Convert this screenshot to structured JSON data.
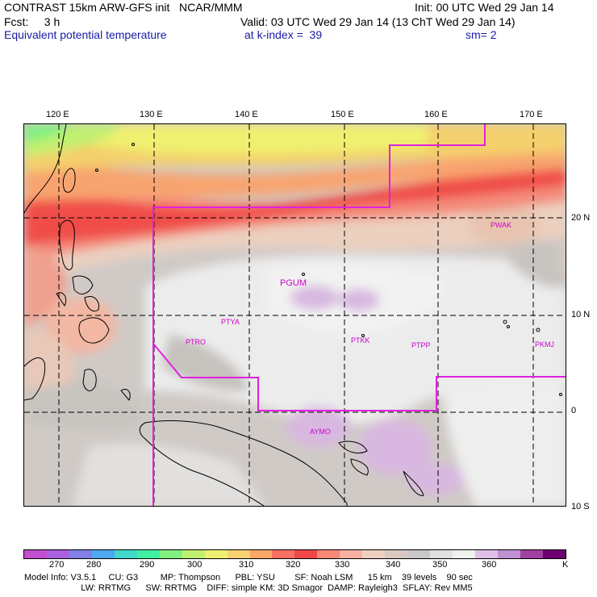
{
  "header": {
    "line1_left": "CONTRAST 15km ARW-GFS init   NCAR/MMM",
    "line1_right": "Init: 00 UTC Wed 29 Jan 14",
    "line2_left": "Fcst:     3 h",
    "line2_right": "Valid: 03 UTC Wed 29 Jan 14 (13 ChT Wed 29 Jan 14)",
    "line3_field": "Equivalent potential temperature",
    "line3_level": "at k-index =  39",
    "line3_smooth": "sm= 2"
  },
  "map": {
    "lon_labels": [
      "120 E",
      "130 E",
      "140 E",
      "150 E",
      "160 E",
      "170 E"
    ],
    "lat_labels": [
      "20 N",
      "10 N",
      "0",
      "10 S"
    ],
    "stations": [
      {
        "name": "PWAK"
      },
      {
        "name": "PGUM"
      },
      {
        "name": "PTYA"
      },
      {
        "name": "PTRO"
      },
      {
        "name": "PTKK"
      },
      {
        "name": "PTPP"
      },
      {
        "name": "PKMJ"
      },
      {
        "name": "AYMO"
      }
    ]
  },
  "colorbar": {
    "colors": [
      "#c050d0",
      "#a860e0",
      "#8080e8",
      "#50a8f0",
      "#40d8c8",
      "#40f0a0",
      "#80f080",
      "#c0f070",
      "#f0f070",
      "#f8d070",
      "#f8a868",
      "#f87060",
      "#f04848",
      "#f88878",
      "#f8b0a0",
      "#f0d0c0",
      "#d8c8c0",
      "#c8c8c8",
      "#e0e0e0",
      "#f0f0f0",
      "#e0c0e8",
      "#c090d0",
      "#a040a0",
      "#700070"
    ],
    "tick_labels": [
      "270",
      "280",
      "290",
      "300",
      "310",
      "320",
      "330",
      "340",
      "350",
      "360",
      "K"
    ]
  },
  "footer": {
    "line1": "Model Info: V3.5.1     CU: G3         MP: Thompson      PBL: YSU        SF: Noah LSM      15 km    39 levels    90 sec",
    "line2": "                       LW: RRTMG      SW: RRTMG    DIFF: simple KM: 3D Smagor  DAMP: Rayleigh3  SFLAY: Rev MM5"
  }
}
